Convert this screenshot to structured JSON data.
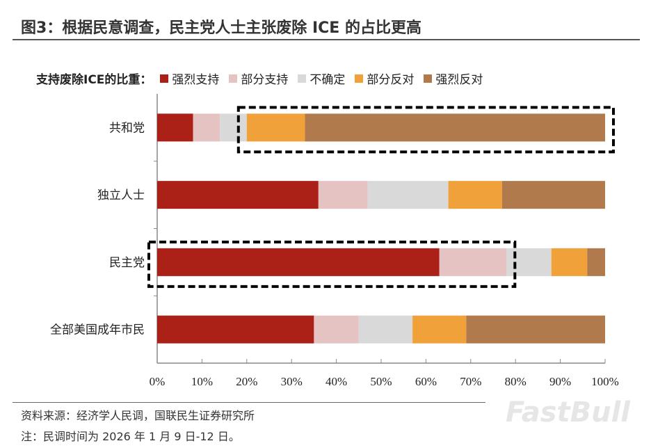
{
  "title": "图3：根据民意调查，民主党人士主张废除 ICE 的占比更高",
  "source": "资料来源：经济学人民调，国联民生证券研究所",
  "note": "注：民调时间为 2026 年 1 月 9 日-12 日。",
  "watermark": "FastBull",
  "chart_data": {
    "type": "bar",
    "orientation": "horizontal-stacked-100",
    "legend_title": "支持废除ICE的比重：",
    "categories": [
      "共和党",
      "独立人士",
      "民主党",
      "全部美国成年市民"
    ],
    "series": [
      {
        "name": "强烈支持",
        "color": "#ab2118",
        "values": [
          8,
          36,
          63,
          35
        ]
      },
      {
        "name": "部分支持",
        "color": "#e5c3c3",
        "values": [
          6,
          11,
          15,
          10
        ]
      },
      {
        "name": "不确定",
        "color": "#d9d9d9",
        "values": [
          6,
          18,
          10,
          12
        ]
      },
      {
        "name": "部分反对",
        "color": "#f0a13a",
        "values": [
          13,
          12,
          8,
          12
        ]
      },
      {
        "name": "强烈反对",
        "color": "#b07a4c",
        "values": [
          67,
          23,
          4,
          31
        ]
      }
    ],
    "xlim": [
      0,
      100
    ],
    "xticks": [
      "0%",
      "10%",
      "20%",
      "30%",
      "40%",
      "50%",
      "60%",
      "70%",
      "80%",
      "90%",
      "100%"
    ],
    "highlighted": [
      {
        "category": "共和党",
        "series": [
          "部分反对",
          "强烈反对"
        ]
      },
      {
        "category": "民主党",
        "series": [
          "强烈支持",
          "部分支持"
        ]
      }
    ]
  }
}
